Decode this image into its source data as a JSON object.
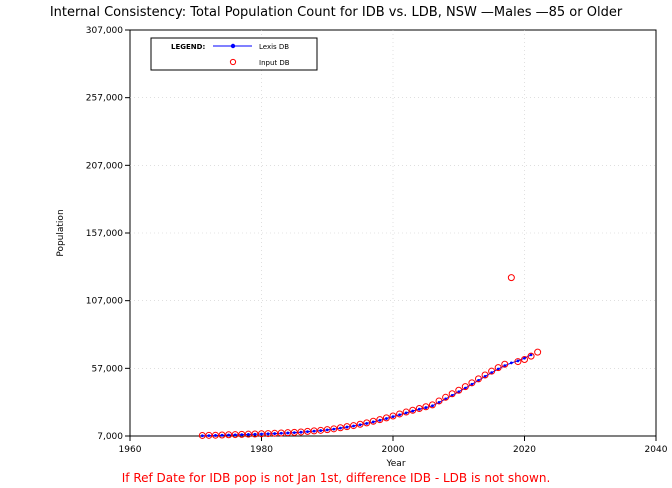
{
  "chart_data": {
    "type": "line",
    "title": "Internal Consistency: Total Population Count for IDB vs. LDB, NSW —Males —85 or Older",
    "xlabel": "Year",
    "ylabel": "Population",
    "xlim": [
      1960,
      2040
    ],
    "ylim": [
      7000,
      307000
    ],
    "x_ticks": [
      1960,
      1980,
      2000,
      2020,
      2040
    ],
    "y_ticks": [
      7000,
      57000,
      107000,
      157000,
      207000,
      257000,
      307000
    ],
    "y_tick_labels": [
      "7,000",
      "57,000",
      "107,000",
      "157,000",
      "207,000",
      "257,000",
      "307,000"
    ],
    "grid": true,
    "legend": {
      "placement": "top-left",
      "title": "LEGEND:",
      "entries": [
        "Lexis DB",
        "Input DB"
      ]
    },
    "series": [
      {
        "name": "Lexis DB",
        "style": "line-with-dots",
        "color": "#0000ff",
        "x": [
          1971,
          1972,
          1973,
          1974,
          1975,
          1976,
          1977,
          1978,
          1979,
          1980,
          1981,
          1982,
          1983,
          1984,
          1985,
          1986,
          1987,
          1988,
          1989,
          1990,
          1991,
          1992,
          1993,
          1994,
          1995,
          1996,
          1997,
          1998,
          1999,
          2000,
          2001,
          2002,
          2003,
          2004,
          2005,
          2006,
          2007,
          2008,
          2009,
          2010,
          2011,
          2012,
          2013,
          2014,
          2015,
          2016,
          2017,
          2018,
          2019,
          2020,
          2021
        ],
        "values": [
          7200,
          7300,
          7400,
          7550,
          7700,
          7850,
          8000,
          8150,
          8300,
          8450,
          8600,
          8800,
          9000,
          9250,
          9500,
          9800,
          10200,
          10600,
          11000,
          11500,
          12100,
          12800,
          13600,
          14400,
          15300,
          16300,
          17400,
          18600,
          19900,
          21300,
          22700,
          24100,
          25500,
          26800,
          28000,
          29300,
          31800,
          34400,
          37000,
          39700,
          42400,
          45200,
          48100,
          51000,
          53800,
          56500,
          59000,
          61000,
          62500,
          64500,
          67000
        ]
      },
      {
        "name": "Input DB",
        "style": "open-circles",
        "color": "#ff0000",
        "x": [
          1971,
          1972,
          1973,
          1974,
          1975,
          1976,
          1977,
          1978,
          1979,
          1980,
          1981,
          1982,
          1983,
          1984,
          1985,
          1986,
          1987,
          1988,
          1989,
          1990,
          1991,
          1992,
          1993,
          1994,
          1995,
          1996,
          1997,
          1998,
          1999,
          2000,
          2001,
          2002,
          2003,
          2004,
          2005,
          2006,
          2007,
          2008,
          2009,
          2010,
          2011,
          2012,
          2013,
          2014,
          2015,
          2016,
          2017,
          2018,
          2019,
          2020,
          2021,
          2022
        ],
        "values": [
          7400,
          7500,
          7600,
          7750,
          7900,
          8050,
          8200,
          8350,
          8500,
          8650,
          8800,
          9000,
          9200,
          9450,
          9700,
          10000,
          10400,
          10800,
          11200,
          11700,
          12300,
          13100,
          13900,
          14700,
          15700,
          16700,
          17900,
          19100,
          20400,
          21800,
          23300,
          24700,
          26000,
          27300,
          28600,
          30000,
          32900,
          35600,
          38200,
          40800,
          43500,
          46300,
          49200,
          52100,
          54900,
          57500,
          60000,
          124000,
          62000,
          63500,
          66000,
          69000
        ]
      }
    ],
    "annotations": []
  },
  "footer": {
    "note": "If Ref Date for IDB pop is not Jan 1st, difference IDB - LDB is not shown.",
    "note_color": "#ff0000"
  }
}
